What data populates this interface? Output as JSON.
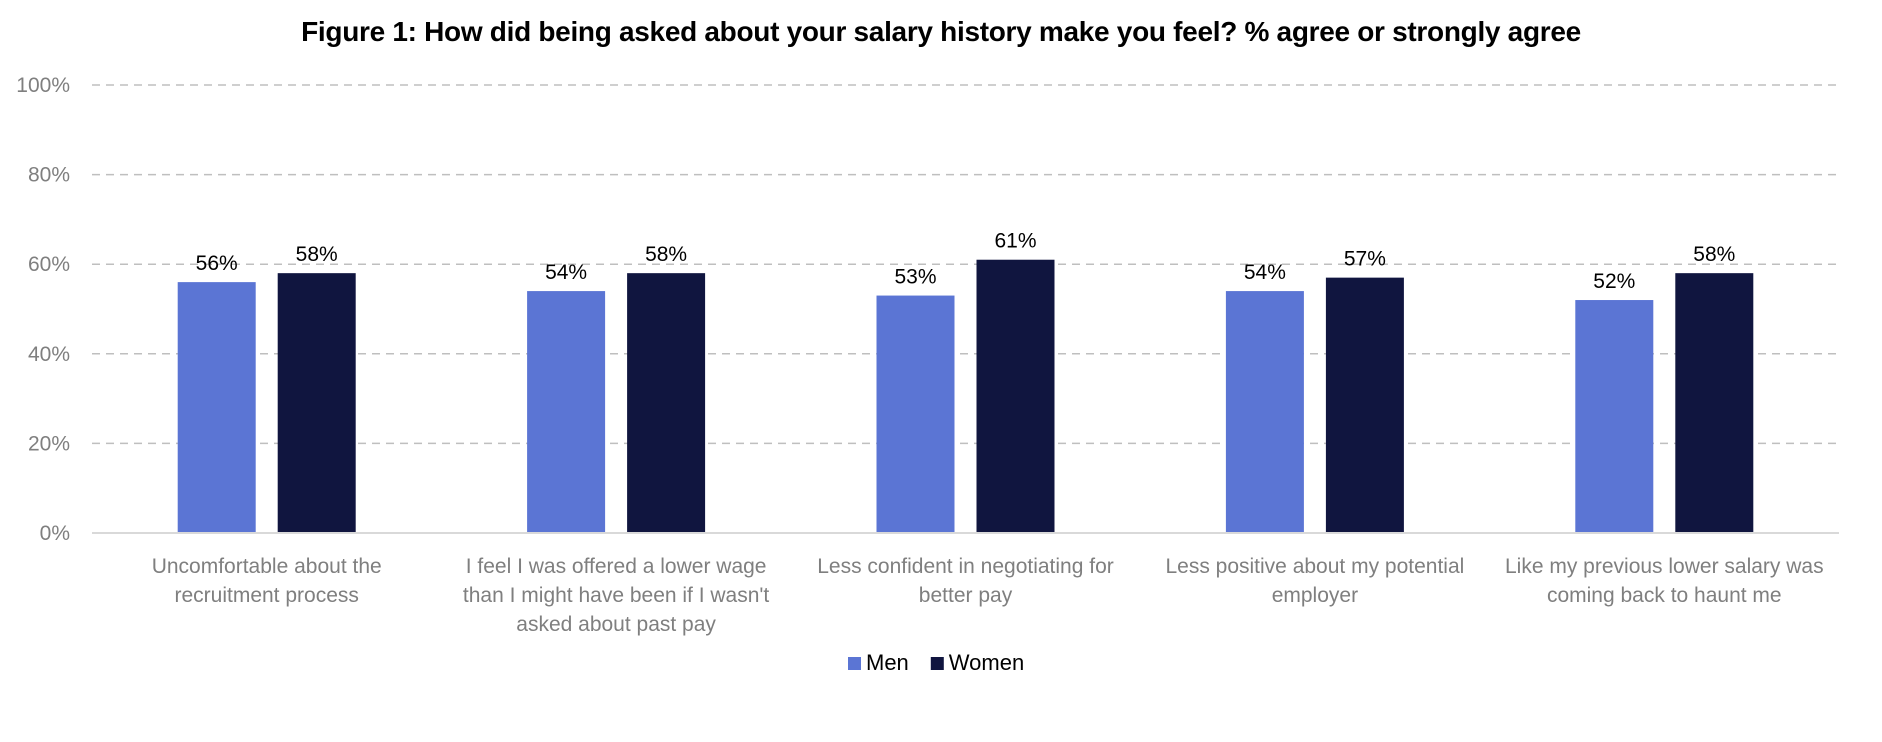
{
  "chart_data": {
    "type": "bar",
    "title": "Figure 1: How did being asked about your salary history make you feel? % agree or strongly agree",
    "xlabel": "",
    "ylabel": "",
    "ylim": [
      0,
      100
    ],
    "yticks": [
      "0%",
      "20%",
      "40%",
      "60%",
      "80%",
      "100%"
    ],
    "ytick_values": [
      0,
      20,
      40,
      60,
      80,
      100
    ],
    "grid": true,
    "legend_position": "bottom-center",
    "categories": [
      [
        "Uncomfortable about the",
        "recruitment process"
      ],
      [
        "I feel I was offered a lower wage",
        "than I might have been if I wasn't",
        "asked about past pay"
      ],
      [
        "Less confident in negotiating for",
        "better pay"
      ],
      [
        "Less positive about my potential",
        "employer"
      ],
      [
        "Like my previous lower salary was",
        "coming back to haunt me"
      ]
    ],
    "series": [
      {
        "name": "Men",
        "color": "#5b75d4",
        "values": [
          56,
          54,
          53,
          54,
          52
        ],
        "labels": [
          "56%",
          "54%",
          "53%",
          "54%",
          "52%"
        ]
      },
      {
        "name": "Women",
        "color": "#10153f",
        "values": [
          58,
          58,
          61,
          57,
          58
        ],
        "labels": [
          "58%",
          "58%",
          "61%",
          "57%",
          "58%"
        ]
      }
    ]
  }
}
